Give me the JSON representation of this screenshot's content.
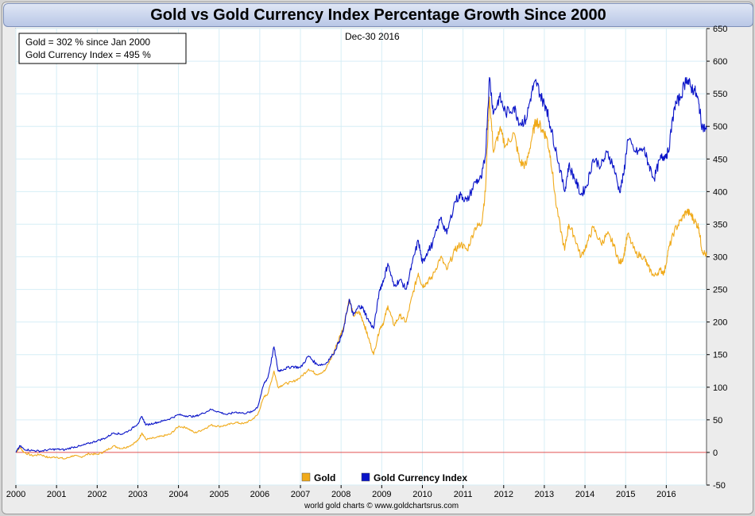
{
  "chart_data": {
    "type": "line",
    "title": "Gold vs Gold Currency Index Percentage Growth Since 2000",
    "date_label": "Dec-30  2016",
    "credit": "world gold charts © www.goldchartsrus.com",
    "xlim": [
      2000,
      2016.99
    ],
    "ylim": [
      -50,
      650
    ],
    "x_ticks": [
      "2000",
      "2001",
      "2002",
      "2003",
      "2004",
      "2005",
      "2006",
      "2007",
      "2008",
      "2009",
      "2010",
      "2011",
      "2012",
      "2013",
      "2014",
      "2015",
      "2016"
    ],
    "y_ticks": [
      -50,
      0,
      50,
      100,
      150,
      200,
      250,
      300,
      350,
      400,
      450,
      500,
      550,
      600,
      650
    ],
    "grid": true,
    "info_box": {
      "line1": "Gold = 302 % since Jan 2000",
      "line2": "Gold Currency Index = 495 %"
    },
    "legend": {
      "position": "bottom-center",
      "items": [
        {
          "label": "Gold",
          "color": "#f0aa1a"
        },
        {
          "label": "Gold Currency Index",
          "color": "#0a14c8"
        }
      ]
    },
    "zero_line_color": "#e05050",
    "series": [
      {
        "name": "Gold",
        "color": "#f0aa1a",
        "points": [
          [
            2000.0,
            0
          ],
          [
            2000.1,
            8
          ],
          [
            2000.2,
            0
          ],
          [
            2000.4,
            -5
          ],
          [
            2000.6,
            -3
          ],
          [
            2000.8,
            -8
          ],
          [
            2001.0,
            -7
          ],
          [
            2001.2,
            -10
          ],
          [
            2001.4,
            -5
          ],
          [
            2001.6,
            -7
          ],
          [
            2001.8,
            -2
          ],
          [
            2002.0,
            -3
          ],
          [
            2002.2,
            2
          ],
          [
            2002.4,
            10
          ],
          [
            2002.6,
            6
          ],
          [
            2002.8,
            10
          ],
          [
            2003.0,
            18
          ],
          [
            2003.1,
            30
          ],
          [
            2003.2,
            20
          ],
          [
            2003.4,
            22
          ],
          [
            2003.6,
            25
          ],
          [
            2003.8,
            28
          ],
          [
            2004.0,
            40
          ],
          [
            2004.2,
            38
          ],
          [
            2004.4,
            30
          ],
          [
            2004.6,
            35
          ],
          [
            2004.8,
            42
          ],
          [
            2005.0,
            40
          ],
          [
            2005.2,
            42
          ],
          [
            2005.4,
            46
          ],
          [
            2005.6,
            44
          ],
          [
            2005.8,
            50
          ],
          [
            2005.95,
            58
          ],
          [
            2006.1,
            85
          ],
          [
            2006.2,
            90
          ],
          [
            2006.35,
            125
          ],
          [
            2006.45,
            100
          ],
          [
            2006.6,
            105
          ],
          [
            2006.8,
            108
          ],
          [
            2007.0,
            115
          ],
          [
            2007.2,
            128
          ],
          [
            2007.4,
            120
          ],
          [
            2007.6,
            125
          ],
          [
            2007.8,
            150
          ],
          [
            2007.95,
            175
          ],
          [
            2008.05,
            190
          ],
          [
            2008.2,
            235
          ],
          [
            2008.3,
            210
          ],
          [
            2008.45,
            215
          ],
          [
            2008.55,
            200
          ],
          [
            2008.65,
            180
          ],
          [
            2008.8,
            150
          ],
          [
            2008.95,
            190
          ],
          [
            2009.05,
            200
          ],
          [
            2009.15,
            225
          ],
          [
            2009.3,
            195
          ],
          [
            2009.45,
            210
          ],
          [
            2009.6,
            200
          ],
          [
            2009.75,
            240
          ],
          [
            2009.9,
            275
          ],
          [
            2010.0,
            255
          ],
          [
            2010.1,
            260
          ],
          [
            2010.25,
            270
          ],
          [
            2010.45,
            300
          ],
          [
            2010.6,
            280
          ],
          [
            2010.8,
            310
          ],
          [
            2010.95,
            320
          ],
          [
            2011.1,
            310
          ],
          [
            2011.3,
            345
          ],
          [
            2011.45,
            350
          ],
          [
            2011.55,
            400
          ],
          [
            2011.65,
            545
          ],
          [
            2011.75,
            460
          ],
          [
            2011.9,
            495
          ],
          [
            2012.05,
            470
          ],
          [
            2012.25,
            490
          ],
          [
            2012.4,
            445
          ],
          [
            2012.55,
            440
          ],
          [
            2012.7,
            485
          ],
          [
            2012.8,
            510
          ],
          [
            2012.95,
            495
          ],
          [
            2013.05,
            485
          ],
          [
            2013.15,
            455
          ],
          [
            2013.3,
            375
          ],
          [
            2013.5,
            310
          ],
          [
            2013.6,
            350
          ],
          [
            2013.75,
            330
          ],
          [
            2013.9,
            300
          ],
          [
            2014.05,
            320
          ],
          [
            2014.2,
            345
          ],
          [
            2014.4,
            320
          ],
          [
            2014.55,
            335
          ],
          [
            2014.7,
            320
          ],
          [
            2014.85,
            290
          ],
          [
            2014.95,
            300
          ],
          [
            2015.05,
            335
          ],
          [
            2015.25,
            305
          ],
          [
            2015.45,
            300
          ],
          [
            2015.55,
            285
          ],
          [
            2015.7,
            270
          ],
          [
            2015.85,
            280
          ],
          [
            2015.95,
            275
          ],
          [
            2016.05,
            310
          ],
          [
            2016.2,
            340
          ],
          [
            2016.35,
            355
          ],
          [
            2016.5,
            370
          ],
          [
            2016.6,
            365
          ],
          [
            2016.7,
            355
          ],
          [
            2016.8,
            345
          ],
          [
            2016.88,
            310
          ],
          [
            2016.99,
            302
          ]
        ]
      },
      {
        "name": "Gold Currency Index",
        "color": "#0a14c8",
        "points": [
          [
            2000.0,
            0
          ],
          [
            2000.1,
            10
          ],
          [
            2000.2,
            5
          ],
          [
            2000.4,
            3
          ],
          [
            2000.6,
            2
          ],
          [
            2000.8,
            4
          ],
          [
            2001.0,
            5
          ],
          [
            2001.2,
            4
          ],
          [
            2001.4,
            8
          ],
          [
            2001.6,
            10
          ],
          [
            2001.8,
            14
          ],
          [
            2002.0,
            18
          ],
          [
            2002.2,
            22
          ],
          [
            2002.4,
            30
          ],
          [
            2002.6,
            28
          ],
          [
            2002.8,
            34
          ],
          [
            2003.0,
            44
          ],
          [
            2003.1,
            55
          ],
          [
            2003.2,
            42
          ],
          [
            2003.4,
            45
          ],
          [
            2003.6,
            48
          ],
          [
            2003.8,
            52
          ],
          [
            2004.0,
            58
          ],
          [
            2004.2,
            56
          ],
          [
            2004.4,
            55
          ],
          [
            2004.6,
            60
          ],
          [
            2004.8,
            66
          ],
          [
            2005.0,
            62
          ],
          [
            2005.2,
            58
          ],
          [
            2005.4,
            62
          ],
          [
            2005.6,
            60
          ],
          [
            2005.8,
            62
          ],
          [
            2005.95,
            70
          ],
          [
            2006.1,
            105
          ],
          [
            2006.2,
            115
          ],
          [
            2006.35,
            162
          ],
          [
            2006.45,
            125
          ],
          [
            2006.6,
            128
          ],
          [
            2006.8,
            132
          ],
          [
            2007.0,
            130
          ],
          [
            2007.2,
            148
          ],
          [
            2007.4,
            135
          ],
          [
            2007.6,
            135
          ],
          [
            2007.8,
            150
          ],
          [
            2007.95,
            170
          ],
          [
            2008.05,
            185
          ],
          [
            2008.2,
            235
          ],
          [
            2008.3,
            210
          ],
          [
            2008.45,
            225
          ],
          [
            2008.55,
            220
          ],
          [
            2008.65,
            205
          ],
          [
            2008.8,
            190
          ],
          [
            2008.95,
            250
          ],
          [
            2009.05,
            265
          ],
          [
            2009.15,
            290
          ],
          [
            2009.3,
            255
          ],
          [
            2009.45,
            265
          ],
          [
            2009.6,
            250
          ],
          [
            2009.75,
            290
          ],
          [
            2009.9,
            325
          ],
          [
            2010.0,
            290
          ],
          [
            2010.1,
            305
          ],
          [
            2010.25,
            320
          ],
          [
            2010.45,
            360
          ],
          [
            2010.6,
            335
          ],
          [
            2010.8,
            385
          ],
          [
            2010.95,
            395
          ],
          [
            2011.1,
            385
          ],
          [
            2011.3,
            415
          ],
          [
            2011.45,
            420
          ],
          [
            2011.55,
            455
          ],
          [
            2011.65,
            575
          ],
          [
            2011.75,
            520
          ],
          [
            2011.9,
            545
          ],
          [
            2012.05,
            520
          ],
          [
            2012.25,
            530
          ],
          [
            2012.4,
            505
          ],
          [
            2012.55,
            510
          ],
          [
            2012.7,
            555
          ],
          [
            2012.8,
            568
          ],
          [
            2012.95,
            540
          ],
          [
            2013.05,
            530
          ],
          [
            2013.15,
            500
          ],
          [
            2013.3,
            460
          ],
          [
            2013.5,
            400
          ],
          [
            2013.6,
            440
          ],
          [
            2013.75,
            420
          ],
          [
            2013.9,
            395
          ],
          [
            2014.05,
            410
          ],
          [
            2014.2,
            450
          ],
          [
            2014.4,
            440
          ],
          [
            2014.55,
            460
          ],
          [
            2014.7,
            440
          ],
          [
            2014.85,
            400
          ],
          [
            2014.95,
            425
          ],
          [
            2015.05,
            480
          ],
          [
            2015.25,
            460
          ],
          [
            2015.45,
            465
          ],
          [
            2015.55,
            445
          ],
          [
            2015.7,
            420
          ],
          [
            2015.85,
            450
          ],
          [
            2015.95,
            455
          ],
          [
            2016.05,
            460
          ],
          [
            2016.2,
            530
          ],
          [
            2016.35,
            545
          ],
          [
            2016.5,
            575
          ],
          [
            2016.6,
            560
          ],
          [
            2016.7,
            555
          ],
          [
            2016.8,
            535
          ],
          [
            2016.88,
            500
          ],
          [
            2016.99,
            495
          ]
        ]
      }
    ]
  }
}
